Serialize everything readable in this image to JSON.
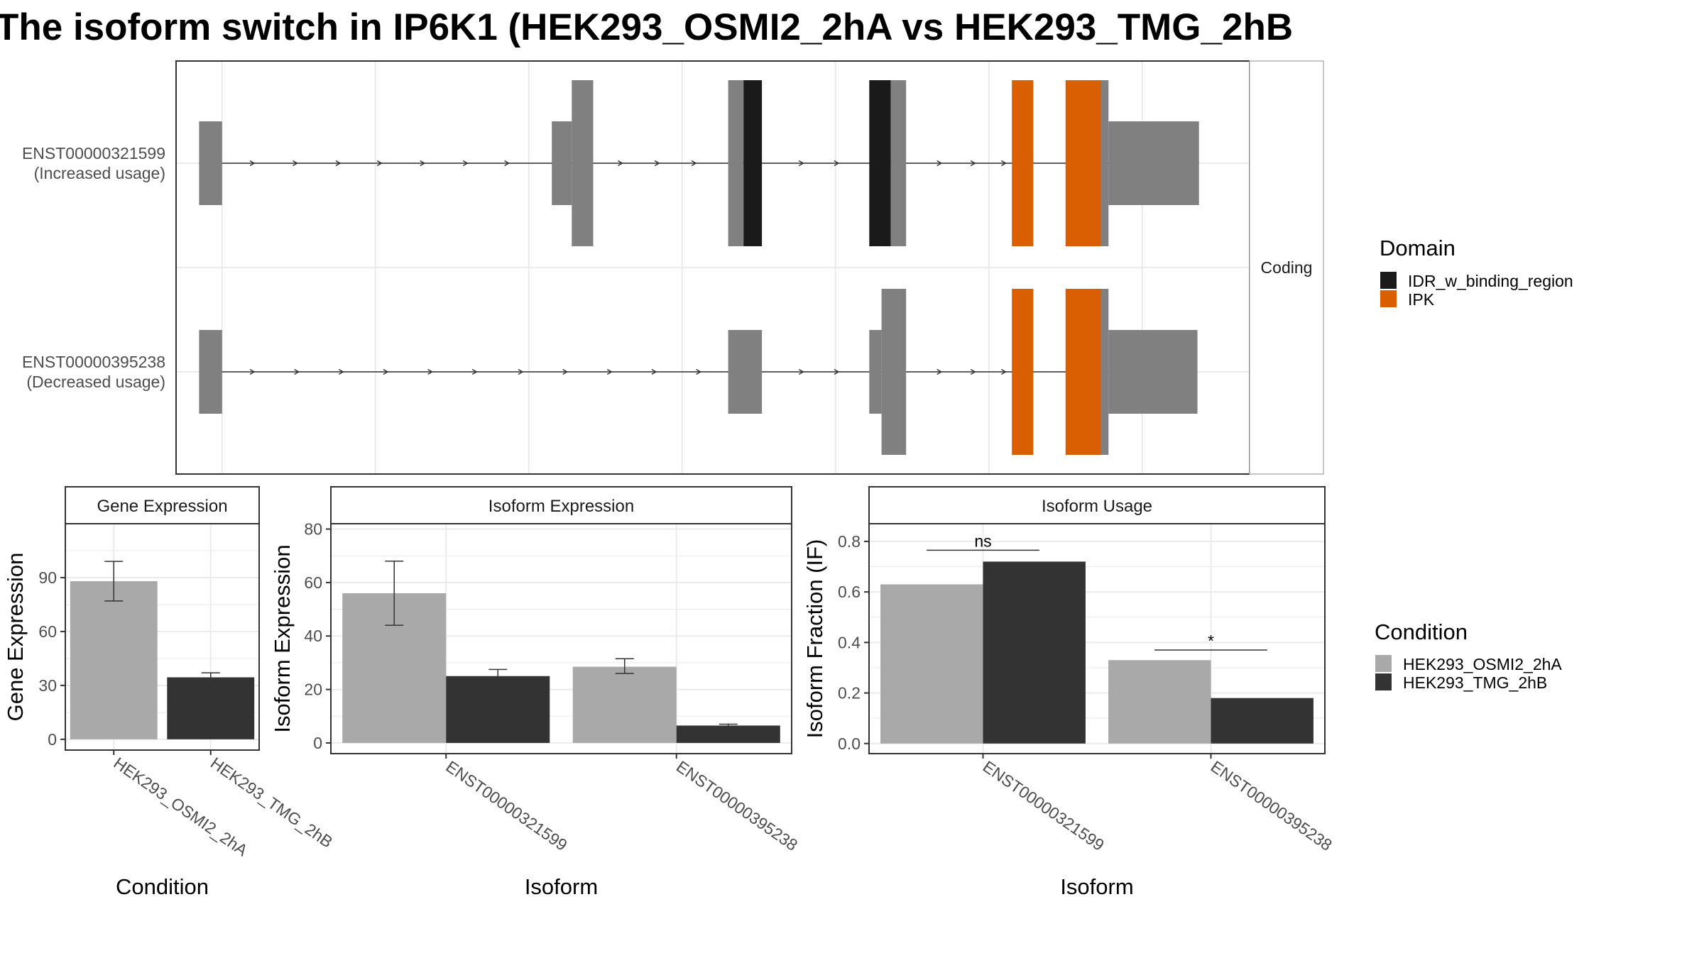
{
  "title": "The isoform switch in IP6K1 (HEK293_OSMI2_2hA vs HEK293_TMG_2hB",
  "colors": {
    "exon": "#808080",
    "cond_a": "#a9a9a9",
    "cond_b": "#333333",
    "domain_idr": "#1a1a1a",
    "domain_ipk": "#d95f02",
    "grid": "#ebebeb",
    "panel_border": "#333333",
    "strip_border": "#b3b3b3"
  },
  "transcript_panel": {
    "strip_label": "Coding",
    "transcripts": [
      {
        "id": "ENST00000321599",
        "usage": "(Increased usage)",
        "exons": [
          {
            "start": 1.5,
            "end": 3.0,
            "size": "small"
          },
          {
            "start": 24.5,
            "end": 25.8,
            "size": "medium"
          },
          {
            "start": 25.8,
            "end": 27.2,
            "size": "large"
          },
          {
            "start": 36.0,
            "end": 37.0,
            "size": "large"
          },
          {
            "start": 37.0,
            "end": 38.2,
            "size": "large",
            "domain": "idr"
          },
          {
            "start": 45.2,
            "end": 46.6,
            "size": "large",
            "domain": "idr"
          },
          {
            "start": 46.6,
            "end": 47.6,
            "size": "large"
          },
          {
            "start": 54.5,
            "end": 55.9,
            "size": "large",
            "domain": "ipk"
          },
          {
            "start": 58.0,
            "end": 60.3,
            "size": "large",
            "domain": "ipk"
          },
          {
            "start": 60.3,
            "end": 60.8,
            "size": "large"
          },
          {
            "start": 60.8,
            "end": 66.7,
            "size": "small"
          }
        ],
        "arrows": [
          5.0,
          7.8,
          10.6,
          13.3,
          16.1,
          18.9,
          21.6,
          29.0,
          31.4,
          33.8,
          40.8,
          43.1,
          49.8,
          52.0,
          54.0
        ]
      },
      {
        "id": "ENST00000395238",
        "usage": "(Decreased usage)",
        "exons": [
          {
            "start": 1.5,
            "end": 3.0,
            "size": "small"
          },
          {
            "start": 36.0,
            "end": 38.2,
            "size": "small"
          },
          {
            "start": 45.2,
            "end": 46.0,
            "size": "medium"
          },
          {
            "start": 46.0,
            "end": 47.6,
            "size": "large"
          },
          {
            "start": 54.5,
            "end": 55.9,
            "size": "large",
            "domain": "ipk"
          },
          {
            "start": 58.0,
            "end": 60.3,
            "size": "large",
            "domain": "ipk"
          },
          {
            "start": 60.3,
            "end": 60.8,
            "size": "large"
          },
          {
            "start": 60.8,
            "end": 66.6,
            "size": "small"
          }
        ],
        "arrows": [
          5.0,
          7.9,
          10.8,
          13.7,
          16.6,
          19.5,
          22.5,
          25.4,
          28.3,
          31.2,
          34.1,
          40.8,
          43.1,
          49.8,
          52.0,
          54.0
        ]
      }
    ],
    "gridlines": [
      3.0,
      13.0,
      23.0,
      33.0,
      43.0,
      53.0,
      63.0
    ]
  },
  "domain_legend": {
    "title": "Domain",
    "items": [
      {
        "label": "IDR_w_binding_region",
        "key": "domain_idr"
      },
      {
        "label": "IPK",
        "key": "domain_ipk"
      }
    ]
  },
  "condition_legend": {
    "title": "Condition",
    "items": [
      {
        "label": "HEK293_OSMI2_2hA",
        "key": "cond_a"
      },
      {
        "label": "HEK293_TMG_2hB",
        "key": "cond_b"
      }
    ]
  },
  "chart_data": [
    {
      "type": "bar",
      "title": "Gene Expression",
      "xlabel": "Condition",
      "ylabel": "Gene Expression",
      "ylim": [
        -6,
        120
      ],
      "yticks": [
        0,
        30,
        60,
        90
      ],
      "categories": [
        "HEK293_OSMI2_2hA",
        "HEK293_TMG_2hB"
      ],
      "series": [
        {
          "name": "HEK293_OSMI2_2hA",
          "values": [
            88,
            null
          ],
          "error": [
            [
              77,
              99
            ],
            null
          ]
        },
        {
          "name": "HEK293_TMG_2hB",
          "values": [
            null,
            34.5
          ],
          "error": [
            null,
            [
              32,
              37
            ]
          ]
        }
      ]
    },
    {
      "type": "bar",
      "title": "Isoform Expression",
      "xlabel": "Isoform",
      "ylabel": "Isoform Expression",
      "ylim": [
        -4,
        82
      ],
      "yticks": [
        0,
        20,
        40,
        60,
        80
      ],
      "categories": [
        "ENST00000321599",
        "ENST00000395238"
      ],
      "series": [
        {
          "name": "HEK293_OSMI2_2hA",
          "values": [
            56,
            28.5
          ],
          "error": [
            [
              44,
              68
            ],
            [
              26,
              31.5
            ]
          ]
        },
        {
          "name": "HEK293_TMG_2hB",
          "values": [
            25,
            6.5
          ],
          "error": [
            [
              23,
              27.5
            ],
            [
              6,
              7
            ]
          ]
        }
      ]
    },
    {
      "type": "bar",
      "title": "Isoform Usage",
      "xlabel": "Isoform",
      "ylabel": "Isoform Fraction (IF)",
      "ylim": [
        -0.04,
        0.87
      ],
      "yticks": [
        0.0,
        0.2,
        0.4,
        0.6,
        0.8
      ],
      "categories": [
        "ENST00000321599",
        "ENST00000395238"
      ],
      "series": [
        {
          "name": "HEK293_OSMI2_2hA",
          "values": [
            0.63,
            0.33
          ]
        },
        {
          "name": "HEK293_TMG_2hB",
          "values": [
            0.72,
            0.18
          ]
        }
      ],
      "annotations": [
        {
          "category": "ENST00000321599",
          "label": "ns",
          "y": 0.765
        },
        {
          "category": "ENST00000395238",
          "label": "*",
          "y": 0.37
        }
      ]
    }
  ]
}
